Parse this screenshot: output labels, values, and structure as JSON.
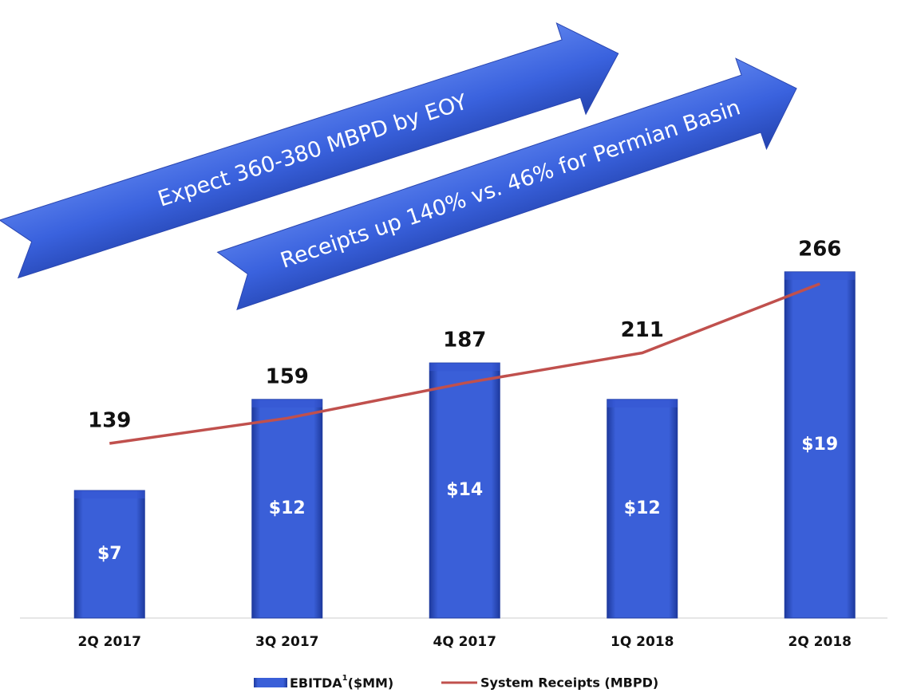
{
  "chart_data": {
    "type": "bar-line",
    "annotations": [
      "Expect 360-380 MBPD by EOY",
      "Receipts up 140% vs. 46% for Permian Basin"
    ],
    "categories": [
      "2Q 2017",
      "3Q 2017",
      "4Q 2017",
      "1Q 2018",
      "2Q 2018"
    ],
    "series": [
      {
        "name": "EBITDA",
        "superscript": "1",
        "unit": "($MM)",
        "type": "bar",
        "color": "#3557d4",
        "values": [
          7,
          12,
          14,
          12,
          19
        ],
        "value_labels": [
          "$7",
          "$12",
          "$14",
          "$12",
          "$19"
        ]
      },
      {
        "name": "System Receipts (MBPD)",
        "type": "line",
        "axis": "y2",
        "color": "#c0504d",
        "values": [
          139,
          159,
          187,
          211,
          266
        ]
      }
    ],
    "ylim": [
      0,
      20
    ],
    "y2lim": [
      0,
      290
    ]
  }
}
